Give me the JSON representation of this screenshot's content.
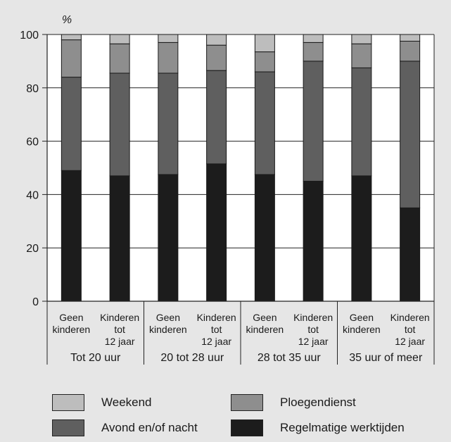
{
  "chart_data": {
    "type": "bar",
    "stacked": true,
    "ylabel": "%",
    "ylim": [
      0,
      100
    ],
    "yticks": [
      0,
      20,
      40,
      60,
      80,
      100
    ],
    "grid": true,
    "categories": [
      {
        "label": [
          "Geen",
          "kinderen"
        ]
      },
      {
        "label": [
          "Kinderen",
          "tot",
          "12 jaar"
        ]
      },
      {
        "label": [
          "Geen",
          "kinderen"
        ]
      },
      {
        "label": [
          "Kinderen",
          "tot",
          "12 jaar"
        ]
      },
      {
        "label": [
          "Geen",
          "kinderen"
        ]
      },
      {
        "label": [
          "Kinderen",
          "tot",
          "12 jaar"
        ]
      },
      {
        "label": [
          "Geen",
          "kinderen"
        ]
      },
      {
        "label": [
          "Kinderen",
          "tot",
          "12 jaar"
        ]
      }
    ],
    "groups": [
      "Tot 20 uur",
      "20 tot 28 uur",
      "28 tot 35 uur",
      "35 uur of meer"
    ],
    "series": [
      {
        "name": "Regelmatige werktijden",
        "color": "#1c1c1c",
        "values": [
          49,
          47,
          47.5,
          51.5,
          47.5,
          45,
          47,
          35
        ]
      },
      {
        "name": "Avond en/of nacht",
        "color": "#5f5f5f",
        "values": [
          35,
          38.5,
          38,
          35,
          38.5,
          45,
          40.5,
          55
        ]
      },
      {
        "name": "Ploegendienst",
        "color": "#8e8e8e",
        "values": [
          14,
          11,
          11.5,
          9.5,
          7.5,
          7,
          9,
          7.5
        ]
      },
      {
        "name": "Weekend",
        "color": "#bdbdbd",
        "values": [
          2,
          3.5,
          3,
          4,
          6.5,
          3,
          3.5,
          2.5
        ]
      }
    ]
  },
  "legend": [
    {
      "name": "Weekend",
      "color": "#bdbdbd"
    },
    {
      "name": "Ploegendienst",
      "color": "#8e8e8e"
    },
    {
      "name": "Avond en/of nacht",
      "color": "#5f5f5f"
    },
    {
      "name": "Regelmatige werktijden",
      "color": "#1c1c1c"
    }
  ]
}
